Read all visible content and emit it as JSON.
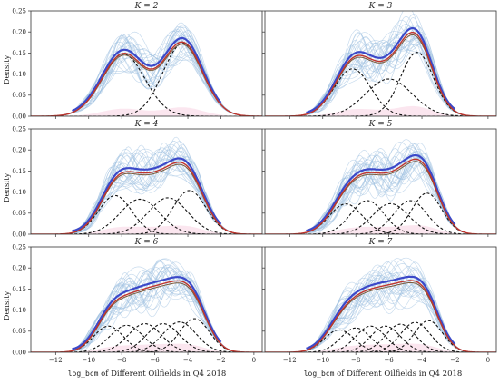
{
  "chart_data": {
    "type": "line",
    "layout": "3x2 grid of panels",
    "ylabel": "Density",
    "xlabel_code": "log_bcm",
    "xlabel_text": " of Different Oilfields in Q4 2018",
    "xlim": [
      -13.5,
      0.5
    ],
    "ylim": [
      0,
      0.25
    ],
    "x_ticks": [
      -12,
      -10,
      -8,
      -6,
      -4,
      -2,
      0
    ],
    "y_ticks": [
      0.0,
      0.05,
      0.1,
      0.15,
      0.2,
      0.25
    ],
    "y_tick_labels": [
      "0.00",
      "0.05",
      "0.10",
      "0.15",
      "0.20",
      "0.25"
    ],
    "colors": {
      "fitted_mixture": "#c1352c",
      "kde": "#3b49c9",
      "components": "#111111",
      "bootstrap_kde": "#9cc0e0",
      "data_band": "#f3b7d0",
      "center_line": "#7a5a3a"
    },
    "panels": [
      {
        "title": "K = 2",
        "components": [
          {
            "mean": -7.9,
            "sd": 1.3,
            "weight": 0.48
          },
          {
            "mean": -4.3,
            "sd": 1.2,
            "weight": 0.52
          }
        ]
      },
      {
        "title": "K = 3",
        "components": [
          {
            "mean": -8.2,
            "sd": 1.1,
            "weight": 0.31
          },
          {
            "mean": -6.0,
            "sd": 1.4,
            "weight": 0.31
          },
          {
            "mean": -4.3,
            "sd": 1.0,
            "weight": 0.38
          }
        ]
      },
      {
        "title": "K = 4",
        "components": [
          {
            "mean": -8.4,
            "sd": 1.0,
            "weight": 0.23
          },
          {
            "mean": -6.9,
            "sd": 1.2,
            "weight": 0.25
          },
          {
            "mean": -5.2,
            "sd": 1.2,
            "weight": 0.26
          },
          {
            "mean": -3.9,
            "sd": 1.0,
            "weight": 0.26
          }
        ]
      },
      {
        "title": "K = 5",
        "components": [
          {
            "mean": -8.6,
            "sd": 1.0,
            "weight": 0.18
          },
          {
            "mean": -7.3,
            "sd": 1.0,
            "weight": 0.2
          },
          {
            "mean": -5.9,
            "sd": 1.1,
            "weight": 0.2
          },
          {
            "mean": -4.7,
            "sd": 1.0,
            "weight": 0.2
          },
          {
            "mean": -3.7,
            "sd": 0.9,
            "weight": 0.22
          }
        ]
      },
      {
        "title": "K = 6",
        "components": [
          {
            "mean": -8.8,
            "sd": 0.9,
            "weight": 0.14
          },
          {
            "mean": -7.7,
            "sd": 1.0,
            "weight": 0.16
          },
          {
            "mean": -6.6,
            "sd": 1.0,
            "weight": 0.17
          },
          {
            "mean": -5.5,
            "sd": 1.0,
            "weight": 0.17
          },
          {
            "mean": -4.5,
            "sd": 1.0,
            "weight": 0.18
          },
          {
            "mean": -3.6,
            "sd": 0.9,
            "weight": 0.18
          }
        ]
      },
      {
        "title": "K = 7",
        "components": [
          {
            "mean": -9.0,
            "sd": 0.9,
            "weight": 0.12
          },
          {
            "mean": -8.0,
            "sd": 0.9,
            "weight": 0.13
          },
          {
            "mean": -7.1,
            "sd": 0.9,
            "weight": 0.14
          },
          {
            "mean": -6.2,
            "sd": 0.9,
            "weight": 0.14
          },
          {
            "mean": -5.3,
            "sd": 0.9,
            "weight": 0.15
          },
          {
            "mean": -4.4,
            "sd": 0.9,
            "weight": 0.16
          },
          {
            "mean": -3.6,
            "sd": 0.85,
            "weight": 0.16
          }
        ]
      }
    ]
  }
}
